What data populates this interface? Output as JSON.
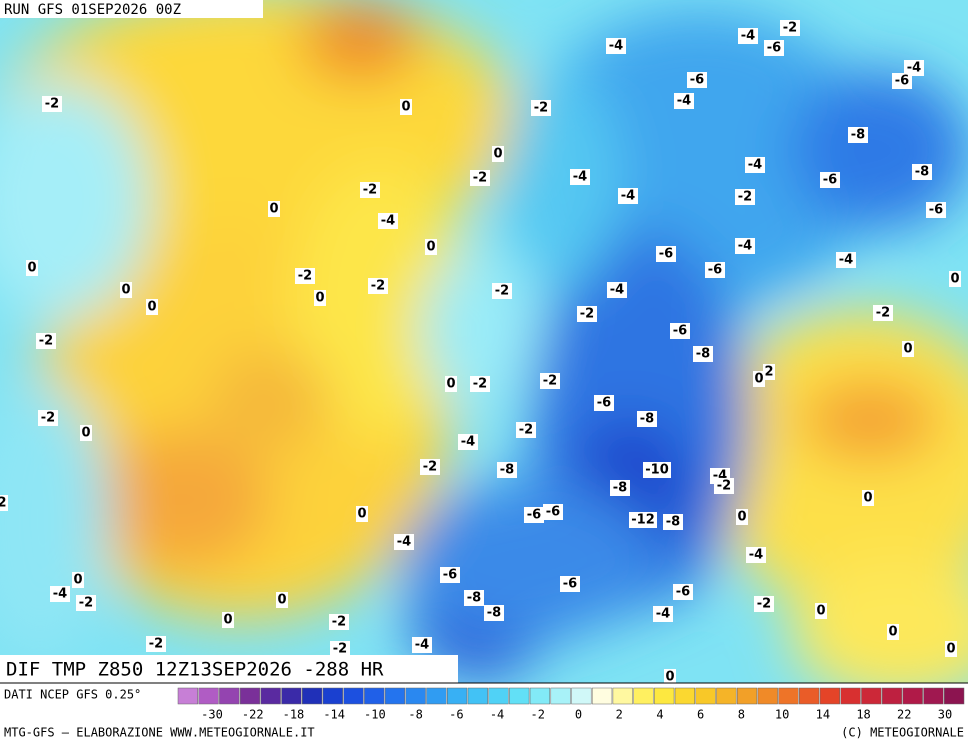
{
  "header": {
    "run": "RUN GFS 01SEP2026 00Z"
  },
  "footer": {
    "title": "DIF TMP Z850 12Z13SEP2026 -288 HR",
    "source": "DATI NCEP GFS 0.25°",
    "credit": "MTG-GFS — ELABORAZIONE WWW.METEOGIORNALE.IT",
    "copyright": "(C) METEOGIORNALE"
  },
  "colorbar": {
    "ticks": [
      -30,
      -22,
      -18,
      -14,
      -10,
      -8,
      -6,
      -4,
      -2,
      0,
      2,
      4,
      6,
      8,
      10,
      14,
      18,
      22,
      30
    ]
  },
  "map": {
    "contour_labels": [
      -2,
      0,
      -4,
      -4,
      -6,
      -2,
      -4,
      -6,
      -6,
      -4,
      -2,
      0,
      -8,
      -2,
      -2,
      -4,
      -4,
      -6,
      -8,
      0,
      -4,
      -4,
      -2,
      -6,
      0,
      -6,
      -4,
      0,
      -2,
      -6,
      -4,
      0,
      0,
      0,
      -2,
      -2,
      -4,
      0,
      -2,
      -2,
      -2,
      -6,
      -8,
      0,
      2,
      0,
      0,
      -2,
      -2,
      -6,
      -2,
      0,
      -8,
      -2,
      -4,
      -2,
      -8,
      -10,
      -4,
      -2,
      -8,
      2,
      0,
      0,
      -6,
      -6,
      -12,
      -8,
      0,
      -4,
      -4,
      -6,
      -6,
      0,
      -4,
      -2,
      0,
      -8,
      -8,
      -6,
      -2,
      0,
      -4,
      0,
      -2,
      0,
      -2,
      -2,
      -4,
      0,
      0
    ]
  }
}
